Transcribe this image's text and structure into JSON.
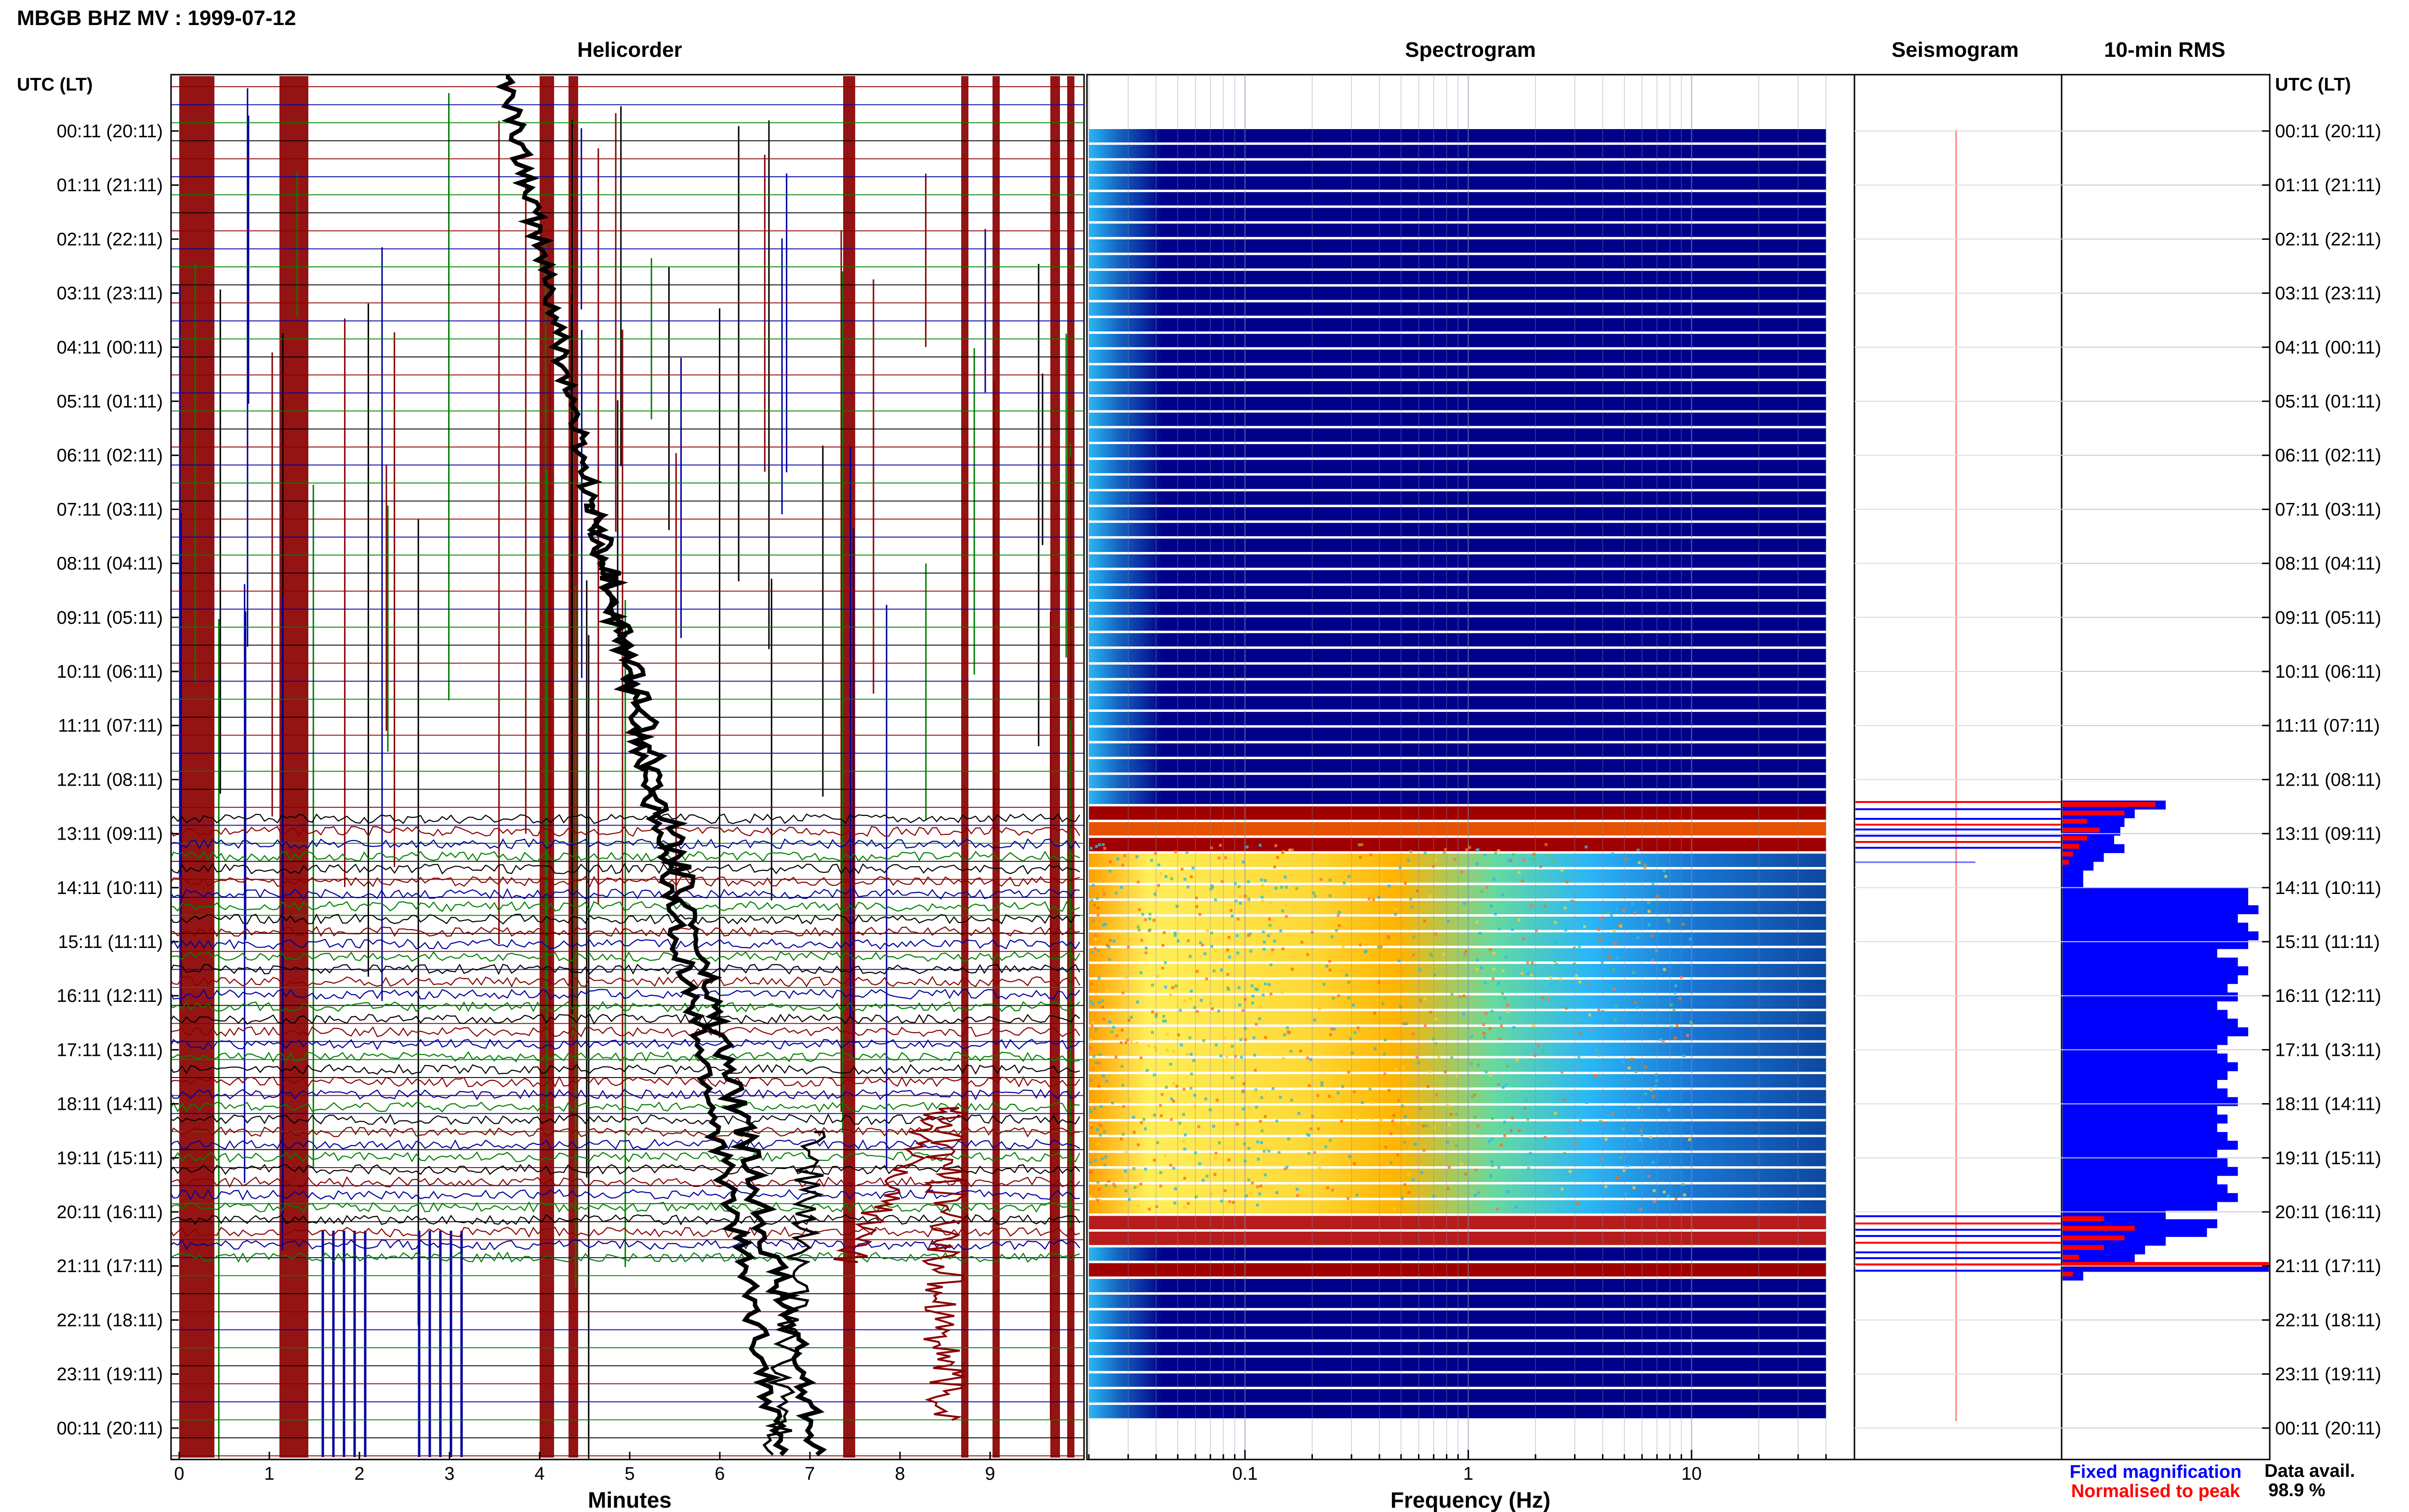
{
  "title": "MBGB BHZ MV : 1999-07-12",
  "panels": {
    "helicorder": "Helicorder",
    "spectrogram": "Spectrogram",
    "seismogram": "Seismogram",
    "rms": "10-min RMS"
  },
  "axis": {
    "time_header_left": "UTC (LT)",
    "time_header_right": "UTC (LT)",
    "minutes_label": "Minutes",
    "frequency_label": "Frequency (Hz)"
  },
  "legend": {
    "fixed": "Fixed magnification",
    "normalised": "Normalised to peak",
    "fixed_color": "#0000ff",
    "normalised_color": "#ff0000"
  },
  "data_availability": {
    "label": "Data avail.",
    "value": "98.9 %"
  },
  "colors": {
    "trace_cycle": [
      "#000000",
      "#8b0000",
      "#0000a0",
      "#008000"
    ],
    "spectrogram_background": "#00008b",
    "rms_fill": "#0000ff",
    "rms_normalised": "#ff0000"
  },
  "chart_data": {
    "type": "heatmap",
    "time_ticks": [
      "00:11 (20:11)",
      "01:11 (21:11)",
      "02:11 (22:11)",
      "03:11 (23:11)",
      "04:11 (00:11)",
      "05:11 (01:11)",
      "06:11 (02:11)",
      "07:11 (03:11)",
      "08:11 (04:11)",
      "09:11 (05:11)",
      "10:11 (06:11)",
      "11:11 (07:11)",
      "12:11 (08:11)",
      "13:11 (09:11)",
      "14:11 (10:11)",
      "15:11 (11:11)",
      "16:11 (12:11)",
      "17:11 (13:11)",
      "18:11 (14:11)",
      "19:11 (15:11)",
      "20:11 (16:11)",
      "21:11 (17:11)",
      "22:11 (18:11)",
      "23:11 (19:11)",
      "00:11 (20:11)"
    ],
    "minutes_ticks": [
      0,
      1,
      2,
      3,
      4,
      5,
      6,
      7,
      8,
      9
    ],
    "minutes_range": [
      0,
      10
    ],
    "frequency_ticks": [
      "0.1",
      "1",
      "10"
    ],
    "frequency_range_hz": [
      0.02,
      40
    ],
    "frequency_scale": "log",
    "active_segment_utc": [
      "12:30",
      "21:20"
    ],
    "rms_fraction": [
      0.5,
      0.35,
      0.3,
      0.28,
      0.25,
      0.3,
      0.2,
      0.15,
      0.1,
      0.1,
      0.9,
      0.9,
      0.95,
      0.85,
      0.9,
      0.95,
      0.9,
      0.75,
      0.85,
      0.9,
      0.85,
      0.8,
      0.85,
      0.75,
      0.8,
      0.85,
      0.9,
      0.8,
      0.75,
      0.8,
      0.85,
      0.8,
      0.75,
      0.8,
      0.85,
      0.75,
      0.8,
      0.75,
      0.8,
      0.85,
      0.75,
      0.8,
      0.85,
      0.75,
      0.8,
      0.85,
      0.75,
      0.5,
      0.75,
      0.7,
      0.5,
      0.4,
      0.35,
      1.0,
      0.1
    ]
  }
}
